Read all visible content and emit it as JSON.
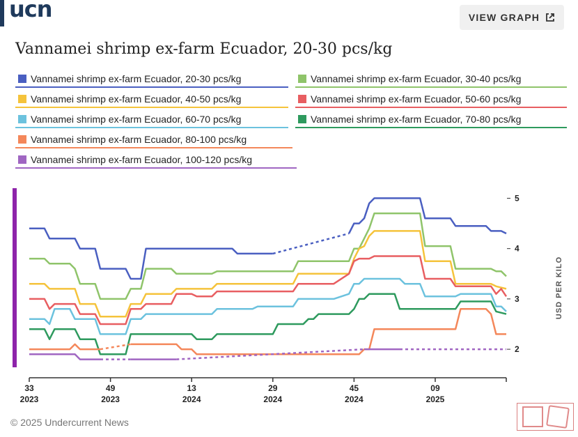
{
  "header": {
    "logo": "ucn",
    "view_graph_label": "VIEW GRAPH"
  },
  "colors": {
    "brand": "#1f3a5c",
    "accent_bar": "#8e24aa"
  },
  "chart_data": {
    "type": "line",
    "title": "Vannamei shrimp ex-farm Ecuador, 20-30 pcs/kg",
    "ylabel": "USD PER KILO",
    "xlabel": "",
    "ylim": [
      1.6,
      5.2
    ],
    "yticks": [
      2,
      3,
      4,
      5
    ],
    "x_unit": "week index from week 33 of 2023",
    "xlim": [
      0,
      94
    ],
    "xticks": [
      {
        "x": 0,
        "week": "33",
        "year": "2023"
      },
      {
        "x": 16,
        "week": "49",
        "year": "2023"
      },
      {
        "x": 32,
        "week": "13",
        "year": "2024"
      },
      {
        "x": 48,
        "week": "29",
        "year": "2024"
      },
      {
        "x": 64,
        "week": "45",
        "year": "2024"
      },
      {
        "x": 80,
        "week": "09",
        "year": "2025"
      }
    ],
    "grid": false,
    "legend": "top",
    "series": [
      {
        "name": "Vannamei shrimp ex-farm Ecuador, 20-30 pcs/kg",
        "color": "#4a5fc1",
        "points": [
          [
            0,
            4.4
          ],
          [
            3,
            4.4
          ],
          [
            4,
            4.2
          ],
          [
            9,
            4.2
          ],
          [
            10,
            4.0
          ],
          [
            13,
            4.0
          ],
          [
            14,
            3.6
          ],
          [
            19,
            3.6
          ],
          [
            20,
            3.4
          ],
          [
            22,
            3.4
          ],
          [
            23,
            4.0
          ],
          [
            40,
            4.0
          ],
          [
            41,
            3.9
          ],
          [
            48,
            3.9
          ]
        ],
        "gap": [
          [
            48,
            3.9
          ],
          [
            63,
            4.3
          ]
        ],
        "points2": [
          [
            63,
            4.3
          ],
          [
            64,
            4.5
          ],
          [
            65,
            4.5
          ],
          [
            66,
            4.6
          ],
          [
            67,
            4.9
          ],
          [
            68,
            5.0
          ],
          [
            77,
            5.0
          ],
          [
            78,
            4.6
          ],
          [
            83,
            4.6
          ],
          [
            84,
            4.45
          ],
          [
            90,
            4.45
          ],
          [
            91,
            4.35
          ],
          [
            93,
            4.35
          ],
          [
            94,
            4.3
          ]
        ]
      },
      {
        "name": "Vannamei shrimp ex-farm Ecuador, 30-40 pcs/kg",
        "color": "#8fc46a",
        "points": [
          [
            0,
            3.8
          ],
          [
            3,
            3.8
          ],
          [
            4,
            3.7
          ],
          [
            8,
            3.7
          ],
          [
            9,
            3.6
          ],
          [
            10,
            3.3
          ],
          [
            13,
            3.3
          ],
          [
            14,
            3.0
          ],
          [
            19,
            3.0
          ],
          [
            20,
            3.2
          ],
          [
            22,
            3.2
          ],
          [
            23,
            3.6
          ],
          [
            28,
            3.6
          ],
          [
            29,
            3.5
          ],
          [
            36,
            3.5
          ],
          [
            37,
            3.55
          ],
          [
            50,
            3.55
          ],
          [
            52,
            3.55
          ],
          [
            53,
            3.75
          ],
          [
            63,
            3.75
          ],
          [
            64,
            4.0
          ],
          [
            65,
            4.0
          ],
          [
            66,
            4.2
          ],
          [
            67,
            4.4
          ],
          [
            68,
            4.7
          ],
          [
            77,
            4.7
          ],
          [
            78,
            4.05
          ],
          [
            83,
            4.05
          ],
          [
            84,
            3.6
          ],
          [
            91,
            3.6
          ],
          [
            92,
            3.55
          ],
          [
            93,
            3.55
          ],
          [
            94,
            3.45
          ]
        ]
      },
      {
        "name": "Vannamei shrimp ex-farm Ecuador, 40-50 pcs/kg",
        "color": "#f5c33b",
        "points": [
          [
            0,
            3.3
          ],
          [
            3,
            3.3
          ],
          [
            4,
            3.2
          ],
          [
            9,
            3.2
          ],
          [
            10,
            2.9
          ],
          [
            13,
            2.9
          ],
          [
            14,
            2.65
          ],
          [
            19,
            2.65
          ],
          [
            20,
            2.9
          ],
          [
            22,
            2.9
          ],
          [
            23,
            3.1
          ],
          [
            28,
            3.1
          ],
          [
            29,
            3.2
          ],
          [
            36,
            3.2
          ],
          [
            37,
            3.3
          ],
          [
            50,
            3.3
          ],
          [
            52,
            3.3
          ],
          [
            53,
            3.5
          ],
          [
            63,
            3.5
          ],
          [
            64,
            3.8
          ],
          [
            65,
            4.0
          ],
          [
            66,
            4.05
          ],
          [
            67,
            4.25
          ],
          [
            68,
            4.35
          ],
          [
            77,
            4.35
          ],
          [
            78,
            3.75
          ],
          [
            83,
            3.75
          ],
          [
            84,
            3.3
          ],
          [
            91,
            3.3
          ],
          [
            92,
            3.25
          ],
          [
            94,
            3.2
          ]
        ]
      },
      {
        "name": "Vannamei shrimp ex-farm Ecuador, 50-60 pcs/kg",
        "color": "#e85e61",
        "points": [
          [
            0,
            3.0
          ],
          [
            3,
            3.0
          ],
          [
            4,
            2.8
          ],
          [
            5,
            2.9
          ],
          [
            9,
            2.9
          ],
          [
            10,
            2.7
          ],
          [
            13,
            2.7
          ],
          [
            14,
            2.5
          ],
          [
            19,
            2.5
          ],
          [
            20,
            2.8
          ],
          [
            22,
            2.8
          ],
          [
            23,
            2.9
          ],
          [
            28,
            2.9
          ],
          [
            29,
            3.1
          ],
          [
            32,
            3.1
          ],
          [
            33,
            3.05
          ],
          [
            36,
            3.05
          ],
          [
            37,
            3.15
          ],
          [
            50,
            3.15
          ],
          [
            52,
            3.15
          ],
          [
            53,
            3.3
          ],
          [
            60,
            3.3
          ],
          [
            63,
            3.5
          ],
          [
            64,
            3.75
          ],
          [
            65,
            3.8
          ],
          [
            67,
            3.8
          ],
          [
            68,
            3.85
          ],
          [
            77,
            3.85
          ],
          [
            78,
            3.4
          ],
          [
            83,
            3.4
          ],
          [
            84,
            3.25
          ],
          [
            91,
            3.25
          ],
          [
            92,
            3.1
          ],
          [
            93,
            3.2
          ],
          [
            94,
            3.05
          ]
        ]
      },
      {
        "name": "Vannamei shrimp ex-farm Ecuador, 60-70 pcs/kg",
        "color": "#6cc2de",
        "points": [
          [
            0,
            2.6
          ],
          [
            3,
            2.6
          ],
          [
            4,
            2.5
          ],
          [
            5,
            2.8
          ],
          [
            8,
            2.8
          ],
          [
            9,
            2.6
          ],
          [
            13,
            2.6
          ],
          [
            14,
            2.3
          ],
          [
            19,
            2.3
          ],
          [
            20,
            2.6
          ],
          [
            22,
            2.6
          ],
          [
            23,
            2.7
          ],
          [
            36,
            2.7
          ],
          [
            37,
            2.8
          ],
          [
            44,
            2.8
          ],
          [
            45,
            2.85
          ],
          [
            52,
            2.85
          ],
          [
            53,
            3.0
          ],
          [
            60,
            3.0
          ],
          [
            63,
            3.1
          ],
          [
            64,
            3.3
          ],
          [
            65,
            3.3
          ],
          [
            66,
            3.4
          ],
          [
            73,
            3.4
          ],
          [
            74,
            3.3
          ],
          [
            77,
            3.3
          ],
          [
            78,
            3.05
          ],
          [
            84,
            3.05
          ],
          [
            85,
            3.1
          ],
          [
            91,
            3.1
          ],
          [
            92,
            2.85
          ],
          [
            93,
            2.85
          ],
          [
            94,
            2.75
          ]
        ]
      },
      {
        "name": "Vannamei shrimp ex-farm Ecuador, 70-80 pcs/kg",
        "color": "#2e9a5e",
        "points": [
          [
            0,
            2.4
          ],
          [
            3,
            2.4
          ],
          [
            4,
            2.2
          ],
          [
            5,
            2.4
          ],
          [
            9,
            2.4
          ],
          [
            10,
            2.2
          ],
          [
            13,
            2.2
          ],
          [
            14,
            1.9
          ],
          [
            19,
            1.9
          ],
          [
            20,
            2.3
          ],
          [
            32,
            2.3
          ],
          [
            33,
            2.2
          ],
          [
            36,
            2.2
          ],
          [
            37,
            2.3
          ],
          [
            48,
            2.3
          ],
          [
            49,
            2.5
          ],
          [
            54,
            2.5
          ],
          [
            55,
            2.6
          ],
          [
            56,
            2.6
          ],
          [
            57,
            2.7
          ],
          [
            63,
            2.7
          ],
          [
            64,
            2.8
          ],
          [
            65,
            3.0
          ],
          [
            66,
            3.0
          ],
          [
            67,
            3.1
          ],
          [
            72,
            3.1
          ],
          [
            73,
            2.8
          ],
          [
            84,
            2.8
          ],
          [
            85,
            2.95
          ],
          [
            91,
            2.95
          ],
          [
            92,
            2.75
          ],
          [
            94,
            2.7
          ]
        ]
      },
      {
        "name": "Vannamei shrimp ex-farm Ecuador, 80-100 pcs/kg",
        "color": "#f4875a",
        "points": [
          [
            0,
            2.0
          ],
          [
            8,
            2.0
          ],
          [
            9,
            2.1
          ],
          [
            10,
            2.0
          ],
          [
            14,
            2.0
          ]
        ],
        "gap": [
          [
            14,
            2.0
          ],
          [
            20,
            2.1
          ]
        ],
        "points2": [
          [
            20,
            2.1
          ],
          [
            29,
            2.1
          ],
          [
            30,
            2.0
          ],
          [
            32,
            2.0
          ],
          [
            33,
            1.9
          ],
          [
            65,
            1.9
          ],
          [
            66,
            2.0
          ],
          [
            67,
            2.0
          ],
          [
            68,
            2.4
          ],
          [
            84,
            2.4
          ],
          [
            85,
            2.8
          ],
          [
            90,
            2.8
          ],
          [
            91,
            2.7
          ],
          [
            92,
            2.3
          ],
          [
            94,
            2.3
          ]
        ]
      },
      {
        "name": "Vannamei shrimp ex-farm Ecuador, 100-120 pcs/kg",
        "color": "#a066c2",
        "points": [
          [
            0,
            1.9
          ],
          [
            9,
            1.9
          ],
          [
            10,
            1.8
          ],
          [
            14,
            1.8
          ]
        ],
        "gap": [
          [
            14,
            1.8
          ],
          [
            20,
            1.8
          ]
        ],
        "points2": [
          [
            20,
            1.8
          ],
          [
            29,
            1.8
          ]
        ],
        "gap2": [
          [
            29,
            1.8
          ],
          [
            66,
            2.0
          ]
        ],
        "points3": [
          [
            66,
            2.0
          ],
          [
            73,
            2.0
          ]
        ],
        "gap3": [
          [
            73,
            2.0
          ],
          [
            94,
            2.0
          ]
        ]
      }
    ]
  },
  "footer": {
    "copyright": "© 2025 Undercurrent News"
  }
}
